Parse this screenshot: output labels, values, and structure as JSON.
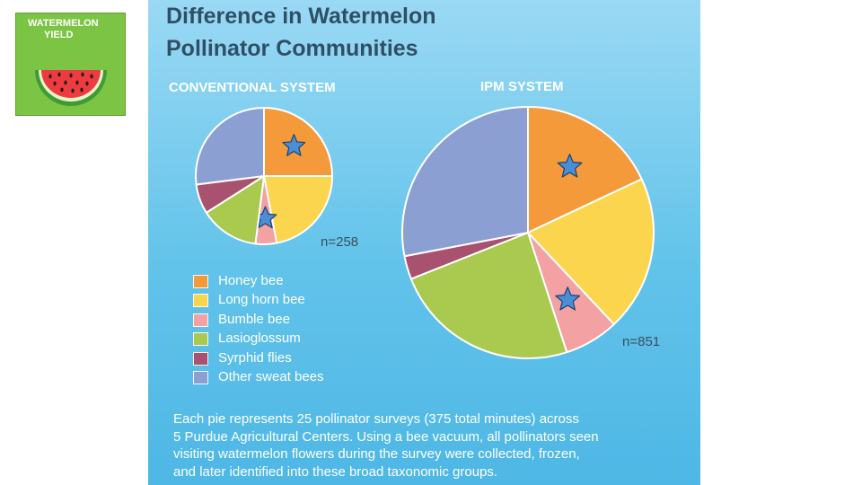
{
  "badge": {
    "line1": "WATERMELON",
    "line2": "YIELD",
    "icon": "watermelon-slice-icon",
    "color": "#7cc444"
  },
  "header": {
    "title_line1": "Difference in Watermelon",
    "title_line2": "Pollinator Communities"
  },
  "legend": [
    {
      "label": "Honey bee",
      "color": "#f49a3a"
    },
    {
      "label": "Long horn bee",
      "color": "#fbd54d"
    },
    {
      "label": "Bumble bee",
      "color": "#f3a1a3"
    },
    {
      "label": "Lasioglossum",
      "color": "#a9c94f"
    },
    {
      "label": "Syrphid flies",
      "color": "#a8526f"
    },
    {
      "label": "Other sweat bees",
      "color": "#8c9fd3"
    }
  ],
  "chart_data": [
    {
      "type": "pie",
      "title": "CONVENTIONAL SYSTEM",
      "n_label": "n=258",
      "n": 258,
      "categories": [
        "Honey bee",
        "Long horn bee",
        "Bumble bee",
        "Lasioglossum",
        "Syrphid flies",
        "Other sweat bees"
      ],
      "values": [
        25,
        22,
        5,
        14,
        7,
        27
      ],
      "starred": [
        "Honey bee",
        "Bumble bee"
      ],
      "star_icon": "star-icon"
    },
    {
      "type": "pie",
      "title": "IPM SYSTEM",
      "n_label": "n=851",
      "n": 851,
      "categories": [
        "Honey bee",
        "Long horn bee",
        "Bumble bee",
        "Lasioglossum",
        "Syrphid flies",
        "Other sweat bees"
      ],
      "values": [
        18,
        20,
        7,
        24,
        3,
        28
      ],
      "starred": [
        "Honey bee",
        "Bumble bee"
      ],
      "star_icon": "star-icon"
    }
  ],
  "caption": [
    "Each pie represents 25 pollinator surveys (375 total minutes) across",
    "5 Purdue Agricultural Centers. Using a bee vacuum, all pollinators seen",
    "visiting watermelon flowers during the survey were collected, frozen,",
    "and later identified into these broad  taxonomic groups."
  ]
}
